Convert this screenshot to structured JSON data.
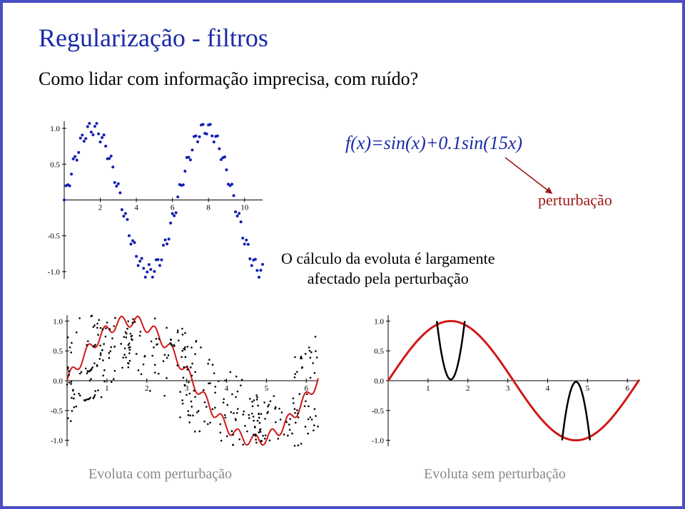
{
  "title": "Regularização - filtros",
  "subtitle": "Como lidar com informação imprecisa, com ruído?",
  "formula": "f(x)=sin(x)+0.1sin(15x)",
  "perturbation_label": "perturbação",
  "body_text": "O cálculo da evoluta é largamente\nafectado pela perturbação",
  "caption_left": "Evoluta com perturbação",
  "caption_right": "Evoluta sem perturbação",
  "colors": {
    "title": "#1a2aa6",
    "formula": "#1a2aa6",
    "perturb": "#a01818",
    "caption": "#888888",
    "border": "#4a4fc4",
    "axis": "#000000",
    "dot": "#1020b0",
    "black_dot": "#000000",
    "curve_red": "#d01818"
  },
  "chart_top": {
    "type": "scatter",
    "xlim": [
      0,
      11
    ],
    "ylim": [
      -1.1,
      1.1
    ],
    "xticks": [
      2,
      4,
      6,
      8,
      10
    ],
    "yticks": [
      -1.0,
      -0.5,
      0.5,
      1.0
    ],
    "ytick_labels": [
      "-1.0",
      "-0.5",
      "0.5",
      "1.0"
    ],
    "marker_color": "#1020b0",
    "marker_size": 2.0,
    "n_points": 110,
    "function": "sin(x)+0.1*sin(15x)"
  },
  "chart_bl": {
    "type": "scatter+line",
    "xlim": [
      0,
      6.3
    ],
    "ylim": [
      -1.1,
      1.1
    ],
    "xticks": [
      1,
      2,
      3,
      4,
      5,
      6
    ],
    "yticks": [
      -1.0,
      -0.5,
      0.0,
      0.5,
      1.0
    ],
    "ytick_labels": [
      "-1.0",
      "-0.5",
      "0.0",
      "0.5",
      "1.0"
    ],
    "curve_color": "#d01818",
    "curve_width": 2,
    "curve_function": "sin(x)+0.1*sin(15x)",
    "dots_color": "#000000",
    "dots_size": 1.3,
    "dots_cloud": "scattered evolute points"
  },
  "chart_br": {
    "type": "line",
    "xlim": [
      0,
      6.3
    ],
    "ylim": [
      -1.1,
      1.1
    ],
    "xticks": [
      1,
      2,
      3,
      4,
      5,
      6
    ],
    "yticks": [
      -1.0,
      -0.5,
      0.0,
      0.5,
      1.0
    ],
    "ytick_labels": [
      "-1.0",
      "-0.5",
      "0.0",
      "0.5",
      "1.0"
    ],
    "red_curve": {
      "color": "#d01818",
      "width": 3,
      "function": "sin(x)"
    },
    "black_curves": {
      "color": "#000000",
      "width": 2.5,
      "branches": [
        [
          1.35,
          1.77
        ],
        [
          4.5,
          4.92
        ]
      ],
      "note": "parabola-like evolute branches opening upward/downward near sin extrema"
    }
  }
}
